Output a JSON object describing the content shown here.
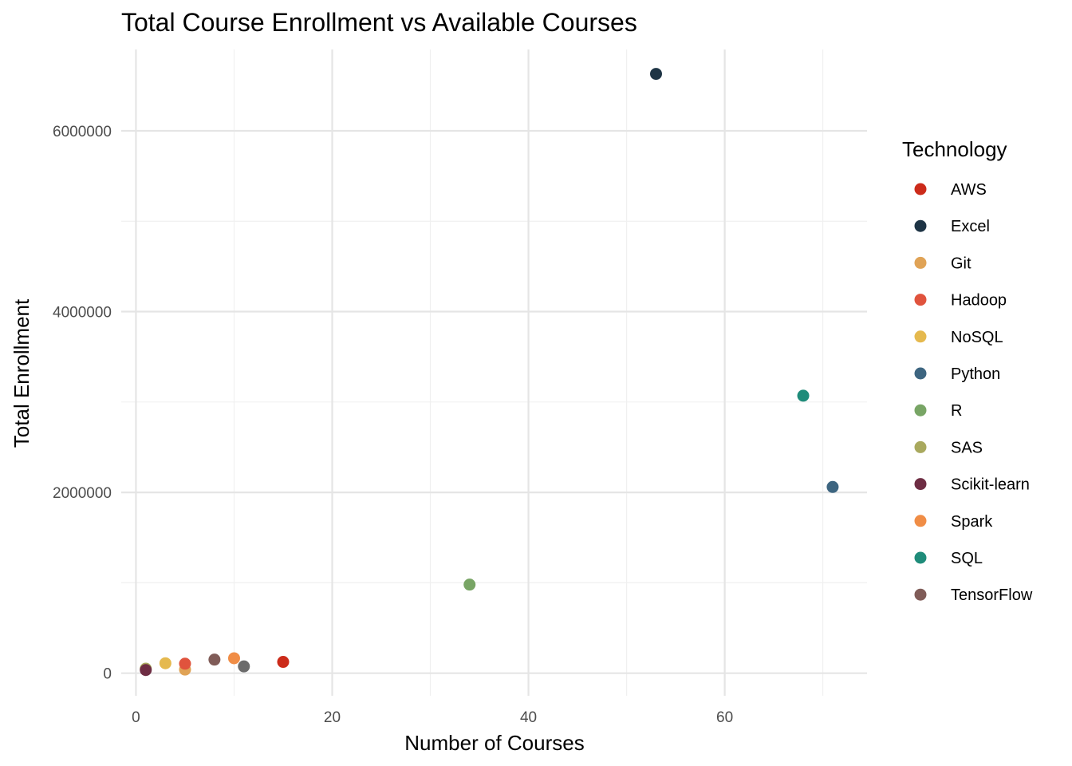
{
  "chart_data": {
    "type": "scatter",
    "title": "Total Course Enrollment vs Available Courses",
    "xlabel": "Number of Courses",
    "ylabel": "Total Enrollment",
    "xlim": [
      -1.5,
      74.5
    ],
    "ylim": [
      -250000,
      6900000
    ],
    "x_ticks": [
      0,
      20,
      40,
      60
    ],
    "y_ticks": [
      0,
      2000000,
      4000000,
      6000000
    ],
    "x_tick_labels": [
      "0",
      "20",
      "40",
      "60"
    ],
    "y_tick_labels": [
      "0",
      "2000000",
      "4000000",
      "6000000"
    ],
    "grid": true,
    "legend": {
      "title": "Technology",
      "placement": "right"
    },
    "series": [
      {
        "name": "AWS",
        "color": "#cc2b1a",
        "points": [
          {
            "x": 15,
            "y": 125000
          }
        ]
      },
      {
        "name": "Excel",
        "color": "#1e3445",
        "points": [
          {
            "x": 53,
            "y": 6630000
          }
        ]
      },
      {
        "name": "Git",
        "color": "#e0a356",
        "points": [
          {
            "x": 5,
            "y": 40000
          }
        ]
      },
      {
        "name": "Hadoop",
        "color": "#e0533d",
        "points": [
          {
            "x": 5,
            "y": 105000
          }
        ]
      },
      {
        "name": "NoSQL",
        "color": "#e5b94e",
        "points": [
          {
            "x": 3,
            "y": 110000
          }
        ]
      },
      {
        "name": "Python",
        "color": "#3d6580",
        "points": [
          {
            "x": 71,
            "y": 2060000
          }
        ]
      },
      {
        "name": "R",
        "color": "#78a565",
        "points": [
          {
            "x": 34,
            "y": 980000
          }
        ]
      },
      {
        "name": "SAS",
        "color": "#a9a95e",
        "points": [
          {
            "x": 1,
            "y": 50000
          }
        ]
      },
      {
        "name": "Scikit-learn",
        "color": "#6e2d43",
        "points": [
          {
            "x": 1,
            "y": 35000
          }
        ]
      },
      {
        "name": "Spark",
        "color": "#f08d46",
        "points": [
          {
            "x": 10,
            "y": 165000
          }
        ]
      },
      {
        "name": "SQL",
        "color": "#1f8c7a",
        "points": [
          {
            "x": 68,
            "y": 3070000
          }
        ]
      },
      {
        "name": "TensorFlow",
        "color": "#805c58",
        "points": [
          {
            "x": 8,
            "y": 150000
          }
        ]
      }
    ],
    "unlabeled_points": [
      {
        "x": 11,
        "y": 75000,
        "color": "#6b6b6b"
      }
    ]
  }
}
